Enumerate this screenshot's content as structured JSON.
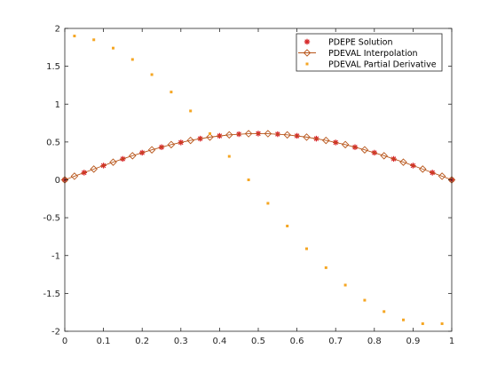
{
  "chart_data": {
    "type": "line",
    "title": "",
    "xlabel": "",
    "ylabel": "",
    "xlim": [
      0,
      1
    ],
    "ylim": [
      -2,
      2
    ],
    "x_ticks": [
      0,
      0.1,
      0.2,
      0.3,
      0.4,
      0.5,
      0.6,
      0.7,
      0.8,
      0.9,
      1
    ],
    "x_tick_labels": [
      "0",
      "0.1",
      "0.2",
      "0.3",
      "0.4",
      "0.5",
      "0.6",
      "0.7",
      "0.8",
      "0.9",
      "1"
    ],
    "y_ticks": [
      -2,
      -1.5,
      -1,
      -0.5,
      0,
      0.5,
      1,
      1.5,
      2
    ],
    "y_tick_labels": [
      "-2",
      "-1.5",
      "-1",
      "-0.5",
      "0",
      "0.5",
      "1",
      "1.5",
      "2"
    ],
    "grid": false,
    "legend_position": "top-right",
    "series": [
      {
        "name": "PDEPE Solution",
        "marker": "star",
        "line": "none",
        "color": "#d62728",
        "x": [
          0,
          0.05,
          0.1,
          0.15,
          0.2,
          0.25,
          0.3,
          0.35,
          0.4,
          0.45,
          0.5,
          0.55,
          0.6,
          0.65,
          0.7,
          0.75,
          0.8,
          0.85,
          0.9,
          0.95,
          1
        ],
        "y": [
          0,
          0.0952,
          0.1882,
          0.2766,
          0.3584,
          0.4314,
          0.4938,
          0.5441,
          0.581,
          0.6036,
          0.6112,
          0.6036,
          0.581,
          0.5441,
          0.4938,
          0.4314,
          0.3584,
          0.2766,
          0.1882,
          0.0952,
          0
        ]
      },
      {
        "name": "PDEVAL Interpolation",
        "marker": "diamond",
        "line": "solid",
        "color": "#b8561b",
        "x": [
          0,
          0.025,
          0.075,
          0.125,
          0.175,
          0.225,
          0.275,
          0.325,
          0.375,
          0.425,
          0.475,
          0.525,
          0.575,
          0.625,
          0.675,
          0.725,
          0.775,
          0.825,
          0.875,
          0.925,
          0.975,
          1
        ],
        "y": [
          0,
          0.048,
          0.1422,
          0.2333,
          0.3184,
          0.3964,
          0.4652,
          0.5207,
          0.5644,
          0.594,
          0.6095,
          0.6095,
          0.594,
          0.5644,
          0.5207,
          0.4652,
          0.3964,
          0.3184,
          0.2333,
          0.1422,
          0.048,
          0
        ]
      },
      {
        "name": "PDEVAL Partial Derivative",
        "marker": "point",
        "line": "none",
        "color": "#f5a623",
        "x": [
          0.025,
          0.075,
          0.125,
          0.175,
          0.225,
          0.275,
          0.325,
          0.375,
          0.425,
          0.475,
          0.525,
          0.575,
          0.625,
          0.675,
          0.725,
          0.775,
          0.825,
          0.875,
          0.925,
          0.975
        ],
        "y": [
          1.9,
          1.85,
          1.74,
          1.59,
          1.39,
          1.16,
          0.91,
          0.61,
          0.31,
          0,
          -0.31,
          -0.61,
          -0.91,
          -1.16,
          -1.39,
          -1.59,
          -1.74,
          -1.85,
          -1.9,
          -1.9
        ]
      }
    ]
  }
}
